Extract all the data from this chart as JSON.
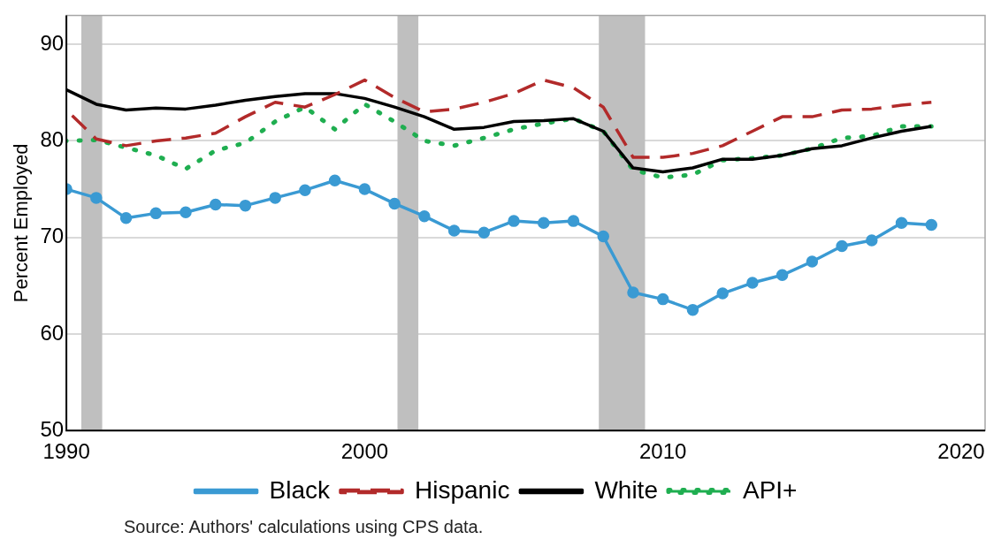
{
  "chart_data": {
    "type": "line",
    "ylabel": "Percent Employed",
    "x": [
      1990,
      1991,
      1992,
      1993,
      1994,
      1995,
      1996,
      1997,
      1998,
      1999,
      2000,
      2001,
      2002,
      2003,
      2004,
      2005,
      2006,
      2007,
      2008,
      2009,
      2010,
      2011,
      2012,
      2013,
      2014,
      2015,
      2016,
      2017,
      2018,
      2019
    ],
    "series": [
      {
        "name": "Black",
        "color": "#3a9ad3",
        "marker": "circle",
        "line_style": "solid",
        "values": [
          75.0,
          74.1,
          72.0,
          72.5,
          72.6,
          73.4,
          73.3,
          74.1,
          74.9,
          75.9,
          75.0,
          73.5,
          72.2,
          70.7,
          70.5,
          71.7,
          71.5,
          71.7,
          70.1,
          64.3,
          63.6,
          62.5,
          64.2,
          65.3,
          66.1,
          67.5,
          69.1,
          69.7,
          71.5,
          71.3
        ]
      },
      {
        "name": "Hispanic",
        "color": "#b22a2a",
        "marker": "none",
        "line_style": "dashed",
        "values": [
          83.2,
          80.2,
          79.5,
          80.0,
          80.3,
          80.8,
          82.5,
          84.0,
          83.5,
          84.8,
          86.3,
          84.5,
          83.0,
          83.3,
          84.0,
          84.9,
          86.3,
          85.5,
          83.5,
          78.3,
          78.3,
          78.7,
          79.5,
          81.0,
          82.5,
          82.5,
          83.2,
          83.3,
          83.7,
          84.0
        ]
      },
      {
        "name": "White",
        "color": "#000000",
        "marker": "none",
        "line_style": "solid",
        "values": [
          85.3,
          83.8,
          83.2,
          83.4,
          83.3,
          83.7,
          84.2,
          84.6,
          84.9,
          84.9,
          84.4,
          83.5,
          82.5,
          81.2,
          81.4,
          82.0,
          82.1,
          82.3,
          81.0,
          77.2,
          76.8,
          77.2,
          78.1,
          78.1,
          78.5,
          79.2,
          79.5,
          80.3,
          81.0,
          81.5
        ]
      },
      {
        "name": "API+",
        "color": "#1fae50",
        "marker": "none",
        "line_style": "dotted",
        "values": [
          80.0,
          80.1,
          79.3,
          78.5,
          77.1,
          79.0,
          79.8,
          82.0,
          83.5,
          81.2,
          83.8,
          82.0,
          80.0,
          79.5,
          80.3,
          81.2,
          81.8,
          82.3,
          81.0,
          77.0,
          76.2,
          76.5,
          78.0,
          78.2,
          78.5,
          79.2,
          80.3,
          80.5,
          81.5,
          81.5
        ]
      }
    ],
    "xlim": [
      1990,
      2020.8
    ],
    "xticks": [
      1990,
      2000,
      2010,
      2020
    ],
    "ylim": [
      50,
      93
    ],
    "yticks": [
      50,
      60,
      70,
      80,
      90
    ],
    "bands": [
      {
        "axis": "x",
        "from": 1990.5,
        "to": 1991.2,
        "color": "#bfbfbf"
      },
      {
        "axis": "x",
        "from": 2001.1,
        "to": 2001.8,
        "color": "#bfbfbf"
      },
      {
        "axis": "x",
        "from": 2007.85,
        "to": 2009.4,
        "color": "#bfbfbf"
      }
    ],
    "grid": "y",
    "legend": "bottom",
    "annotations": [
      "Source: Authors' calculations using CPS data."
    ]
  }
}
